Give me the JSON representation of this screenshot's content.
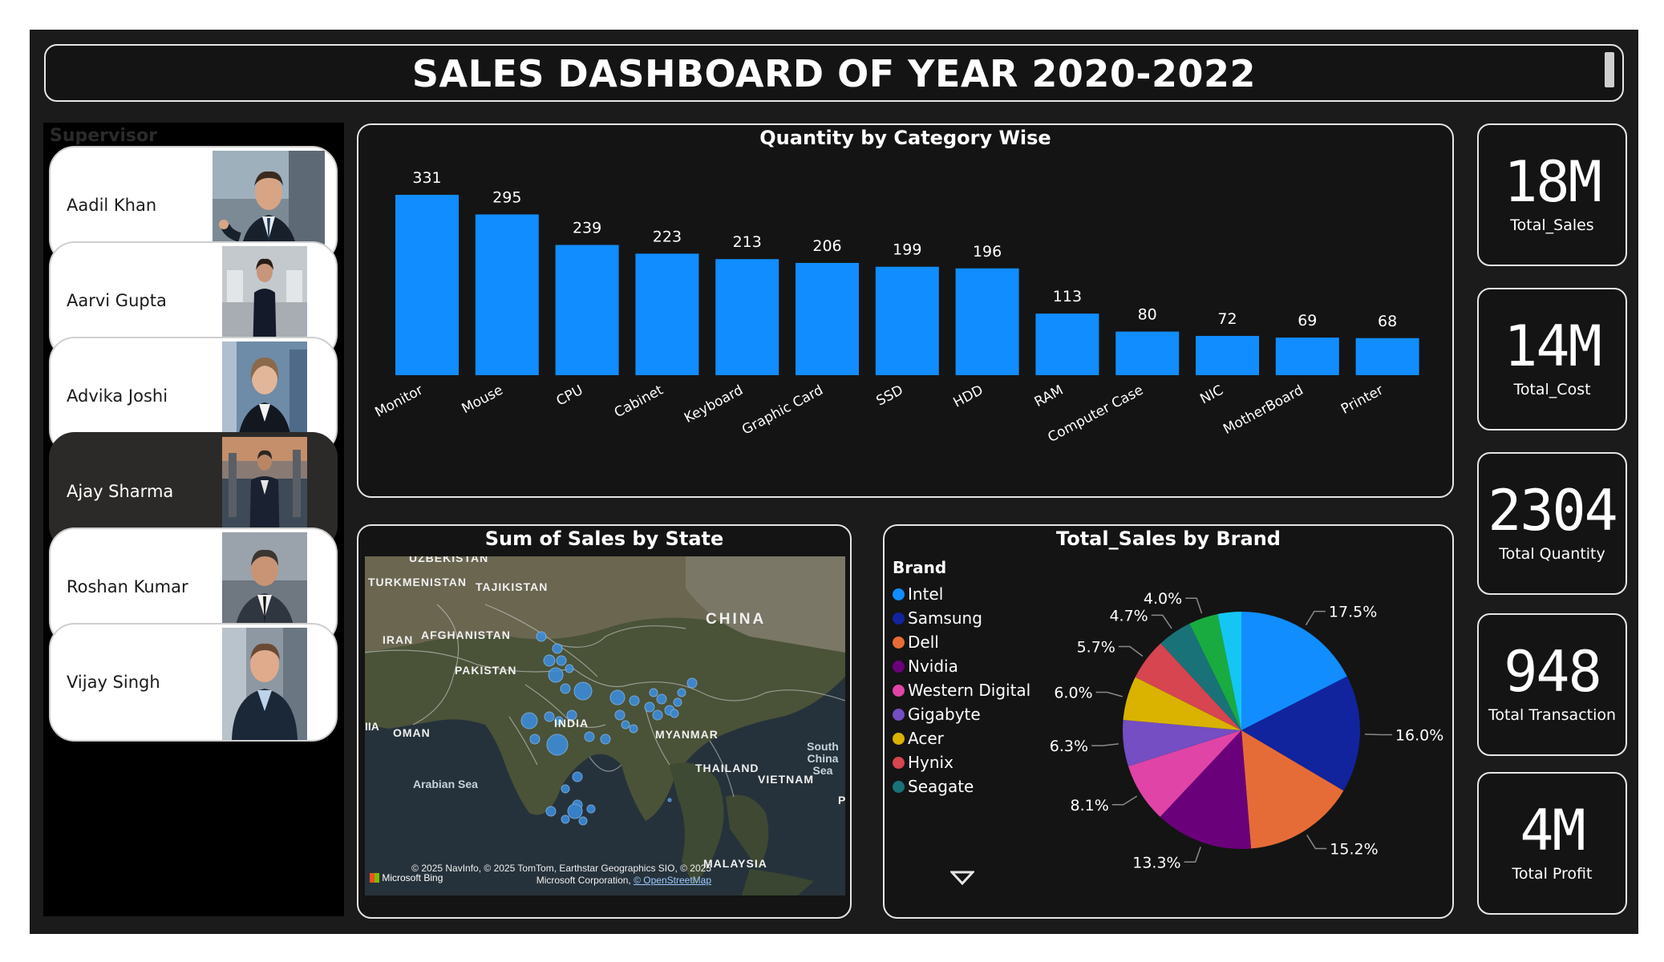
{
  "header": {
    "title": "SALES DASHBOARD OF YEAR 2020-2022"
  },
  "supervisor": {
    "title": "Supervisor",
    "items": [
      {
        "name": "Aadil Khan",
        "selected": false
      },
      {
        "name": "Aarvi Gupta",
        "selected": false
      },
      {
        "name": "Advika Joshi",
        "selected": false
      },
      {
        "name": "Ajay Sharma",
        "selected": true
      },
      {
        "name": "Roshan Kumar",
        "selected": false
      },
      {
        "name": "Vijay Singh",
        "selected": false
      }
    ]
  },
  "bar_chart": {
    "title": "Quantity by Category Wise"
  },
  "map": {
    "title": "Sum of Sales by State",
    "labels": [
      "UZBEKISTAN",
      "TURKMENISTAN",
      "TAJIKISTAN",
      "CHINA",
      "IRAN",
      "AFGHANISTAN",
      "PAKISTAN",
      "OMAN",
      "INDIA",
      "MYANMAR",
      "Arabian Sea",
      "THAILAND",
      "VIETNAM",
      "South China Sea",
      "MALAYSIA",
      "IIA",
      "P"
    ],
    "attribution": "© 2025 NavInfo, © 2025 TomTom, Earthstar Geographics SIO, © 2025 Microsoft Corporation,",
    "osm_link": "© OpenStreetMap",
    "bing": "Microsoft Bing"
  },
  "pie_chart": {
    "title": "Total_Sales by Brand",
    "legend_title": "Brand"
  },
  "kpis": [
    {
      "value": "18M",
      "label": "Total_Sales"
    },
    {
      "value": "14M",
      "label": "Total_Cost"
    },
    {
      "value": "2304",
      "label": "Total Quantity"
    },
    {
      "value": "948",
      "label": "Total Transaction"
    },
    {
      "value": "4M",
      "label": "Total Profit"
    }
  ],
  "colors": {
    "bar": "#118dff",
    "background": "#1b1b1b",
    "panel": "#141414",
    "border": "#e6e6e6"
  },
  "chart_data": [
    {
      "type": "bar",
      "title": "Quantity by Category Wise",
      "categories": [
        "Monitor",
        "Mouse",
        "CPU",
        "Cabinet",
        "Keyboard",
        "Graphic Card",
        "SSD",
        "HDD",
        "RAM",
        "Computer Case",
        "NIC",
        "MotherBoard",
        "Printer"
      ],
      "values": [
        331,
        295,
        239,
        223,
        213,
        206,
        199,
        196,
        113,
        80,
        72,
        69,
        68
      ],
      "data_labels": [
        "331",
        "295",
        "239",
        "223",
        "213",
        "206",
        "199",
        "196",
        "113",
        "80",
        "72",
        "69",
        "68"
      ],
      "ylim": [
        0,
        331
      ],
      "grid": false
    },
    {
      "type": "pie",
      "title": "Total_Sales by Brand",
      "legend_position": "left",
      "slices": [
        {
          "name": "Intel",
          "value": 17.5,
          "label": "17.5%",
          "color": "#118dff"
        },
        {
          "name": "Samsung",
          "value": 16.0,
          "label": "16.0%",
          "color": "#12239e"
        },
        {
          "name": "Dell",
          "value": 15.2,
          "label": "15.2%",
          "color": "#e66c37"
        },
        {
          "name": "Nvidia",
          "value": 13.3,
          "label": "13.3%",
          "color": "#6b007b"
        },
        {
          "name": "Western Digital",
          "value": 8.1,
          "label": "8.1%",
          "color": "#e044a7"
        },
        {
          "name": "Gigabyte",
          "value": 6.3,
          "label": "6.3%",
          "color": "#744ec2"
        },
        {
          "name": "Acer",
          "value": 6.0,
          "label": "6.0%",
          "color": "#d9b300"
        },
        {
          "name": "Hynix",
          "value": 5.7,
          "label": "5.7%",
          "color": "#d64550"
        },
        {
          "name": "Seagate",
          "value": 4.7,
          "label": "4.7%",
          "color": "#197278"
        },
        {
          "name": "",
          "value": 4.0,
          "label": "4.0%",
          "color": "#1aab40"
        },
        {
          "name": "",
          "value": 3.2,
          "label": "",
          "color": "#15c6f4"
        }
      ]
    }
  ]
}
